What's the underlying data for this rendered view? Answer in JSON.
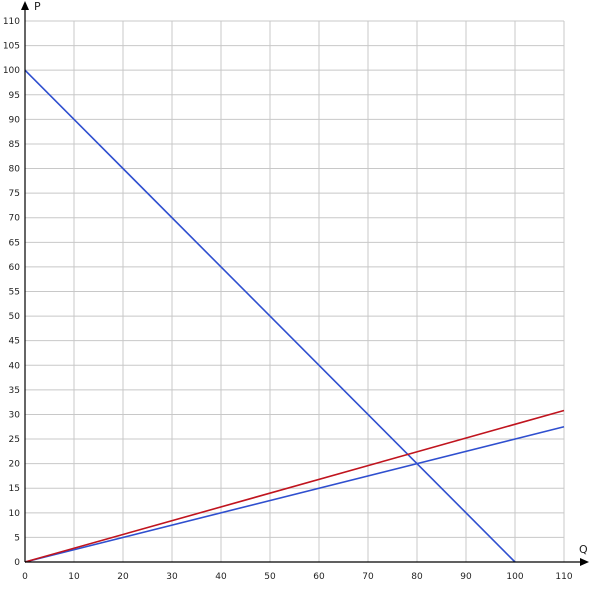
{
  "chart_data": {
    "type": "line",
    "title": "",
    "xlabel": "Q",
    "ylabel": "P",
    "xlim": [
      0,
      110
    ],
    "ylim": [
      0,
      110
    ],
    "x_ticks": [
      0,
      10,
      20,
      30,
      40,
      50,
      60,
      70,
      80,
      90,
      100,
      110
    ],
    "y_ticks": [
      0,
      5,
      10,
      15,
      20,
      25,
      30,
      35,
      40,
      45,
      50,
      55,
      60,
      65,
      70,
      75,
      80,
      85,
      90,
      95,
      100,
      105,
      110
    ],
    "grid": true,
    "series": [
      {
        "color": "#2f4fcf",
        "x": [
          0,
          100
        ],
        "y": [
          100,
          0
        ]
      },
      {
        "color": "#2f4fcf",
        "x": [
          0,
          110
        ],
        "y": [
          0,
          27.5
        ]
      },
      {
        "color": "#c0141e",
        "x": [
          0,
          110
        ],
        "y": [
          0,
          30.8
        ]
      }
    ],
    "colors": {
      "grid": "#c8c8c8",
      "axis": "#000000"
    }
  }
}
